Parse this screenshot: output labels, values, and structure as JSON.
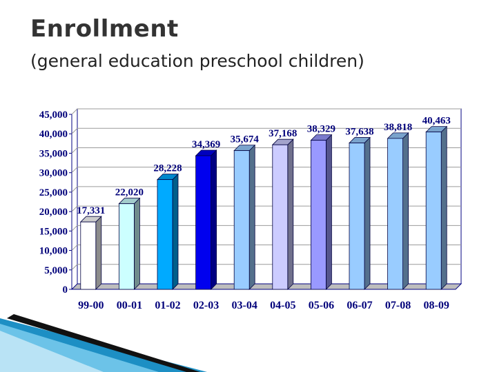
{
  "slide": {
    "title": "Enrollment",
    "subtitle": "(general education preschool children)"
  },
  "chart_data": {
    "type": "bar",
    "categories": [
      "99-00",
      "00-01",
      "01-02",
      "02-03",
      "03-04",
      "04-05",
      "05-06",
      "06-07",
      "07-08",
      "08-09"
    ],
    "values": [
      17331,
      22020,
      28228,
      34369,
      35674,
      37168,
      38329,
      37638,
      38818,
      40463
    ],
    "value_labels": [
      "17,331",
      "22,020",
      "28,228",
      "34,369",
      "35,674",
      "37,168",
      "38,329",
      "37,638",
      "38,818",
      "40,463"
    ],
    "bar_colors": [
      "#ffffff",
      "#ccffff",
      "#00aaff",
      "#0000ee",
      "#99ccff",
      "#ccccff",
      "#9999ff",
      "#99ccff",
      "#99ccff",
      "#99ccff"
    ],
    "y_ticks": [
      0,
      5000,
      10000,
      15000,
      20000,
      25000,
      30000,
      35000,
      40000,
      45000
    ],
    "y_tick_labels": [
      "0",
      "5,000",
      "10,000",
      "15,000",
      "20,000",
      "25,000",
      "30,000",
      "35,000",
      "40,000",
      "45,000"
    ],
    "ylim": [
      0,
      45000
    ],
    "grid": true,
    "three_d": true,
    "title": "",
    "xlabel": "",
    "ylabel": ""
  }
}
